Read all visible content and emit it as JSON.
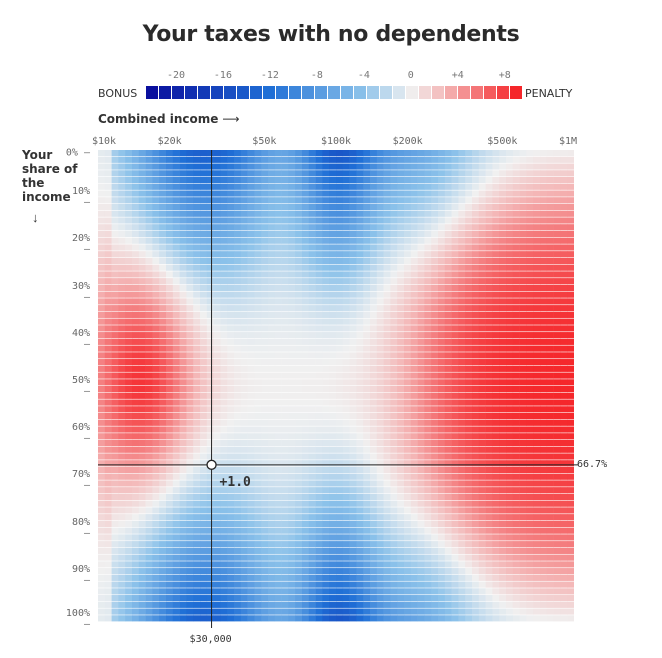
{
  "chart_data": {
    "type": "heatmap",
    "title": "Your taxes with no dependents",
    "xlabel": "Combined income",
    "ylabel": "Your share of the income",
    "x_scale": "log",
    "xlim": [
      10000,
      1000000
    ],
    "ylim": [
      0,
      100
    ],
    "x_ticks": [
      {
        "label": "$10k",
        "value": 10000
      },
      {
        "label": "$20k",
        "value": 20000
      },
      {
        "label": "$50k",
        "value": 50000
      },
      {
        "label": "$100k",
        "value": 100000
      },
      {
        "label": "$200k",
        "value": 200000
      },
      {
        "label": "$500k",
        "value": 500000
      },
      {
        "label": "$1M",
        "value": 1000000
      }
    ],
    "y_ticks": [
      {
        "label": "0%",
        "value": 0
      },
      {
        "label": "10%",
        "value": 10
      },
      {
        "label": "20%",
        "value": 20
      },
      {
        "label": "30%",
        "value": 30
      },
      {
        "label": "40%",
        "value": 40
      },
      {
        "label": "50%",
        "value": 50
      },
      {
        "label": "60%",
        "value": 60
      },
      {
        "label": "70%",
        "value": 70
      },
      {
        "label": "80%",
        "value": 80
      },
      {
        "label": "90%",
        "value": 90
      },
      {
        "label": "100%",
        "value": 100
      }
    ],
    "legend": {
      "left_label": "BONUS",
      "right_label": "PENALTY",
      "min": -22,
      "max": 9,
      "ticks": [
        "-20",
        "-16",
        "-12",
        "-8",
        "-4",
        "0",
        "+4",
        "+8"
      ],
      "tick_values": [
        -20,
        -16,
        -12,
        -8,
        -4,
        0,
        4,
        8
      ],
      "colors": {
        "deep_blue": "#0a0f9e",
        "blue": "#1f6fd6",
        "light_blue": "#8cc2ea",
        "neutral": "#f0f0f0",
        "light_red": "#f4b5b5",
        "red": "#f5262a"
      }
    },
    "selection": {
      "income": 30000,
      "income_label": "$30,000",
      "share": 66.7,
      "share_label": "66.7%",
      "value_label": "+1.0"
    },
    "grid_size": {
      "x_cells": 70,
      "y_cells": 70
    }
  }
}
